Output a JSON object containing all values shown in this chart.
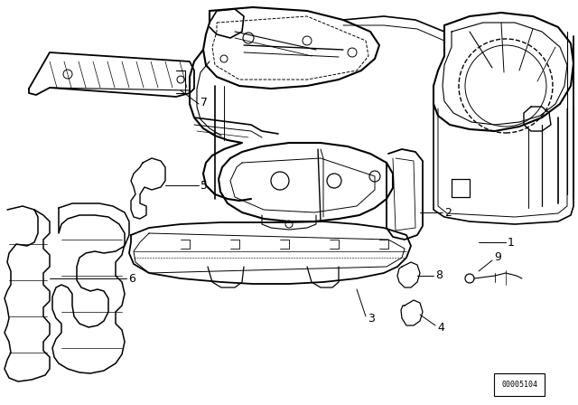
{
  "background_color": "#ffffff",
  "line_color": "#000000",
  "diagram_id": "00005104",
  "figsize": [
    6.4,
    4.48
  ],
  "dpi": 100
}
